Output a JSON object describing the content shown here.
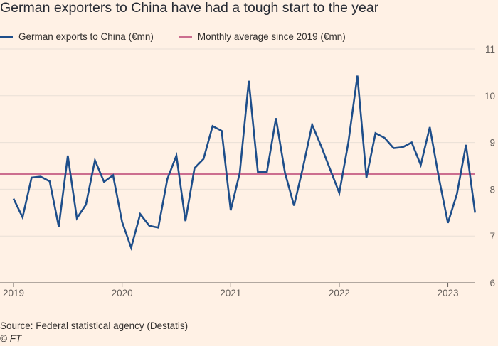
{
  "chart_data": {
    "type": "line",
    "title": "German exporters to China have had a tough start to the year",
    "xlabel": "",
    "ylabel": "",
    "ylim": [
      6,
      11
    ],
    "yticks": [
      6,
      7,
      8,
      9,
      10,
      11
    ],
    "xticks": [
      "2019",
      "2020",
      "2021",
      "2022",
      "2023"
    ],
    "x_start": "2019-01",
    "series": [
      {
        "name": "German exports to China (€mn)",
        "color": "#1e4e8a",
        "values": [
          7.8,
          7.4,
          8.25,
          8.27,
          8.17,
          7.2,
          8.72,
          7.38,
          7.67,
          8.62,
          8.16,
          8.3,
          7.3,
          6.75,
          7.47,
          7.22,
          7.18,
          8.22,
          8.72,
          7.32,
          8.45,
          8.65,
          9.35,
          9.25,
          7.55,
          8.35,
          10.32,
          8.37,
          8.37,
          9.52,
          8.35,
          7.65,
          8.48,
          9.38,
          8.92,
          8.42,
          7.92,
          9.0,
          10.43,
          8.25,
          9.2,
          9.1,
          8.88,
          8.9,
          9.0,
          8.52,
          9.33,
          8.25,
          7.28,
          7.9,
          8.95,
          7.5
        ]
      },
      {
        "name": "Monthly average since 2019 (€mn)",
        "color": "#cc6e8f",
        "values": [
          8.33
        ]
      }
    ]
  },
  "source": "Source: Federal statistical agency (Destatis)",
  "credit": "© FT"
}
